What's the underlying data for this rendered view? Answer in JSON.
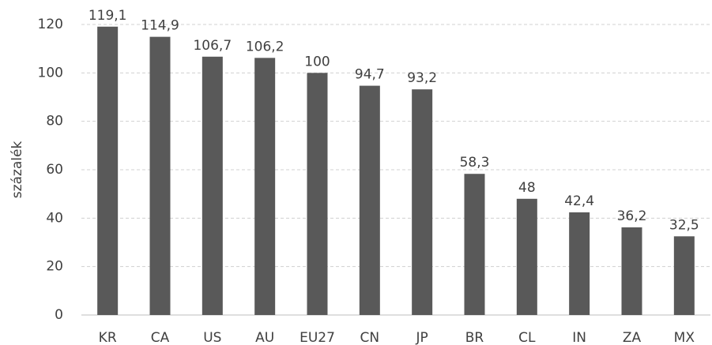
{
  "chart_data": {
    "type": "bar",
    "ylabel": "százalék",
    "categories": [
      "KR",
      "CA",
      "US",
      "AU",
      "EU27",
      "CN",
      "JP",
      "BR",
      "CL",
      "IN",
      "ZA",
      "MX"
    ],
    "values": [
      119.1,
      114.9,
      106.7,
      106.2,
      100,
      94.7,
      93.2,
      58.3,
      48,
      42.4,
      36.2,
      32.5
    ],
    "value_labels": [
      "119,1",
      "114,9",
      "106,7",
      "106,2",
      "100",
      "94,7",
      "93,2",
      "58,3",
      "48",
      "42,4",
      "36,2",
      "32,5"
    ],
    "color": "#595959",
    "ylim": [
      0,
      120
    ],
    "yticks": [
      0,
      20,
      40,
      60,
      80,
      100,
      120
    ],
    "grid": true
  }
}
